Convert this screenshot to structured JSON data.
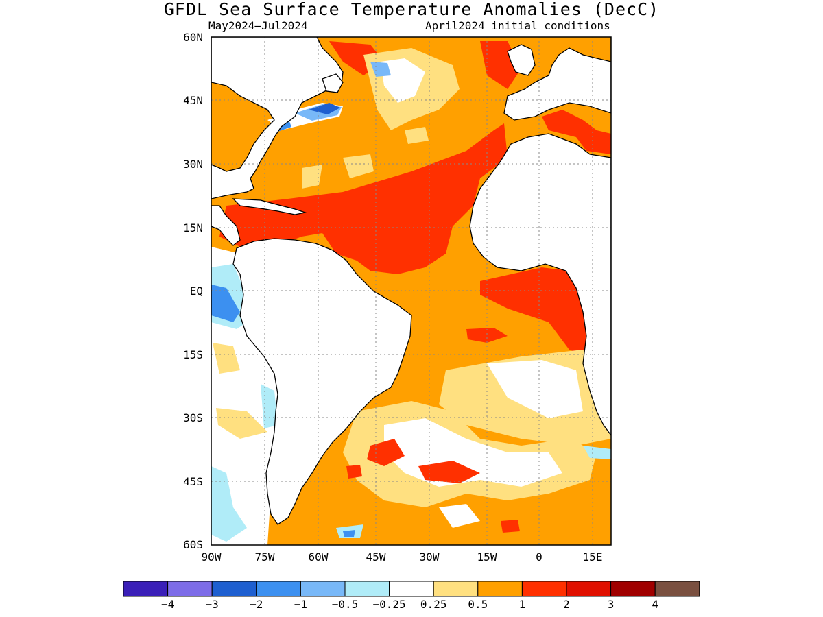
{
  "title": "GFDL Sea Surface Temperature Anomalies (DecC)",
  "subtitle_left": "May2024–Jul2024",
  "subtitle_right": "April2024 initial conditions",
  "lat_labels": [
    "60N",
    "45N",
    "30N",
    "15N",
    "EQ",
    "15S",
    "30S",
    "45S",
    "60S"
  ],
  "lon_labels": [
    "90W",
    "75W",
    "60W",
    "45W",
    "30W",
    "15W",
    "0",
    "15E"
  ],
  "colorbar": {
    "colors": [
      "#3a1fb8",
      "#7d6ce8",
      "#1e5fd0",
      "#3c90f0",
      "#78b8f8",
      "#b0ecf8",
      "#ffffff",
      "#ffe080",
      "#ffa000",
      "#ff3000",
      "#e01000",
      "#a00000",
      "#7a5040"
    ],
    "labels": [
      "−4",
      "−3",
      "−2",
      "−1",
      "−0.5",
      "−0.25",
      "0.25",
      "0.5",
      "1",
      "2",
      "3",
      "4"
    ]
  }
}
